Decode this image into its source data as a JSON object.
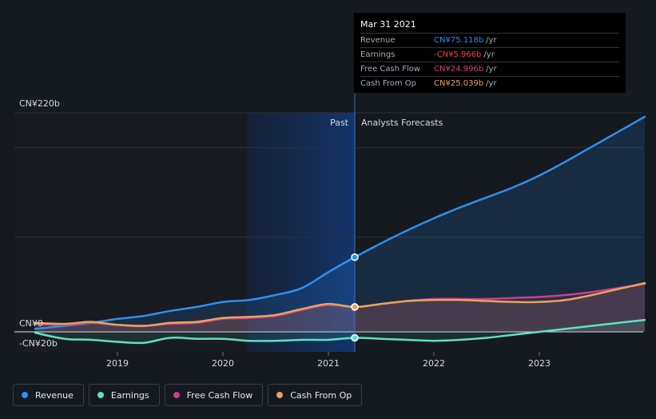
{
  "tooltip": {
    "date": "Mar 31 2021",
    "rows": [
      {
        "label": "Revenue",
        "value": "CN¥75.118b",
        "unit": "/yr",
        "color": "#2e8ff0"
      },
      {
        "label": "Earnings",
        "value": "-CN¥5.966b",
        "unit": "/yr",
        "color": "#ff3b3b"
      },
      {
        "label": "Free Cash Flow",
        "value": "CN¥24.996b",
        "unit": "/yr",
        "color": "#d0437f"
      },
      {
        "label": "Cash From Op",
        "value": "CN¥25.039b",
        "unit": "/yr",
        "color": "#e6a25a"
      }
    ]
  },
  "regions": {
    "past": "Past",
    "forecast": "Analysts Forecasts"
  },
  "legend": [
    {
      "label": "Revenue",
      "color": "#2e8ff0"
    },
    {
      "label": "Earnings",
      "color": "#5fe0c5"
    },
    {
      "label": "Free Cash Flow",
      "color": "#c8418c"
    },
    {
      "label": "Cash From Op",
      "color": "#e8a45a"
    }
  ],
  "chart_data": {
    "type": "line",
    "title": "",
    "ylim": [
      -20,
      220
    ],
    "y_tick_labels": [
      {
        "value": 220,
        "label": "CN¥220b"
      },
      {
        "value": 0,
        "label": "CN¥0"
      },
      {
        "value": -20,
        "label": "-CN¥20b"
      }
    ],
    "x_ticks": [
      {
        "value": 2019,
        "label": "2019"
      },
      {
        "value": 2020,
        "label": "2020"
      },
      {
        "value": 2021,
        "label": "2021"
      },
      {
        "value": 2022,
        "label": "2022"
      },
      {
        "value": 2023,
        "label": "2023"
      }
    ],
    "xlim": [
      2018.1,
      2024.0
    ],
    "past_end": 2021.25,
    "highlight_start": 2020.23,
    "series": [
      {
        "name": "Revenue",
        "color": "#2e8ff0",
        "points": [
          [
            2018.22,
            3
          ],
          [
            2018.5,
            6
          ],
          [
            2018.75,
            9
          ],
          [
            2019.0,
            13
          ],
          [
            2019.25,
            16
          ],
          [
            2019.5,
            21
          ],
          [
            2019.75,
            25
          ],
          [
            2020.0,
            30
          ],
          [
            2020.25,
            32
          ],
          [
            2020.5,
            37
          ],
          [
            2020.75,
            44
          ],
          [
            2021.0,
            60
          ],
          [
            2021.25,
            75
          ],
          [
            2021.5,
            89
          ],
          [
            2021.75,
            102
          ],
          [
            2022.0,
            114
          ],
          [
            2022.25,
            125
          ],
          [
            2022.5,
            135
          ],
          [
            2022.75,
            145
          ],
          [
            2023.0,
            157
          ],
          [
            2023.25,
            171
          ],
          [
            2023.5,
            186
          ],
          [
            2023.75,
            201
          ],
          [
            2024.0,
            216
          ]
        ]
      },
      {
        "name": "Earnings",
        "color": "#5fe0c5",
        "points": [
          [
            2018.22,
            -1
          ],
          [
            2018.5,
            -7
          ],
          [
            2018.75,
            -8
          ],
          [
            2019.0,
            -10
          ],
          [
            2019.25,
            -11
          ],
          [
            2019.5,
            -6
          ],
          [
            2019.75,
            -7
          ],
          [
            2020.0,
            -7
          ],
          [
            2020.25,
            -9
          ],
          [
            2020.5,
            -9
          ],
          [
            2020.75,
            -8
          ],
          [
            2021.0,
            -8
          ],
          [
            2021.25,
            -6
          ],
          [
            2021.5,
            -7
          ],
          [
            2021.75,
            -8
          ],
          [
            2022.0,
            -9
          ],
          [
            2022.25,
            -8
          ],
          [
            2022.5,
            -6
          ],
          [
            2022.75,
            -3
          ],
          [
            2023.0,
            0
          ],
          [
            2023.25,
            3
          ],
          [
            2023.5,
            6
          ],
          [
            2023.75,
            9
          ],
          [
            2024.0,
            12
          ]
        ]
      },
      {
        "name": "Free Cash Flow",
        "color": "#c8418c",
        "points": [
          [
            2018.22,
            8
          ],
          [
            2018.5,
            7
          ],
          [
            2018.75,
            9
          ],
          [
            2019.0,
            7
          ],
          [
            2019.25,
            6
          ],
          [
            2019.5,
            8
          ],
          [
            2019.75,
            9
          ],
          [
            2020.0,
            13
          ],
          [
            2020.25,
            14
          ],
          [
            2020.5,
            16
          ],
          [
            2020.75,
            22
          ],
          [
            2021.0,
            27
          ],
          [
            2021.25,
            25
          ],
          [
            2021.5,
            28
          ],
          [
            2021.75,
            31
          ],
          [
            2022.0,
            33
          ],
          [
            2022.25,
            33
          ],
          [
            2022.5,
            33
          ],
          [
            2022.75,
            34
          ],
          [
            2023.0,
            35
          ],
          [
            2023.25,
            37
          ],
          [
            2023.5,
            40
          ],
          [
            2023.75,
            44
          ],
          [
            2024.0,
            48
          ]
        ]
      },
      {
        "name": "Cash From Op",
        "color": "#e8a45a",
        "points": [
          [
            2018.22,
            9
          ],
          [
            2018.5,
            8
          ],
          [
            2018.75,
            10
          ],
          [
            2019.0,
            7
          ],
          [
            2019.25,
            6
          ],
          [
            2019.5,
            9
          ],
          [
            2019.75,
            10
          ],
          [
            2020.0,
            14
          ],
          [
            2020.25,
            15
          ],
          [
            2020.5,
            17
          ],
          [
            2020.75,
            23
          ],
          [
            2021.0,
            28
          ],
          [
            2021.25,
            25
          ],
          [
            2021.5,
            28
          ],
          [
            2021.75,
            31
          ],
          [
            2022.0,
            32
          ],
          [
            2022.25,
            32
          ],
          [
            2022.5,
            31
          ],
          [
            2022.75,
            30
          ],
          [
            2023.0,
            30
          ],
          [
            2023.25,
            32
          ],
          [
            2023.5,
            37
          ],
          [
            2023.75,
            43
          ],
          [
            2024.0,
            49
          ]
        ]
      }
    ]
  }
}
